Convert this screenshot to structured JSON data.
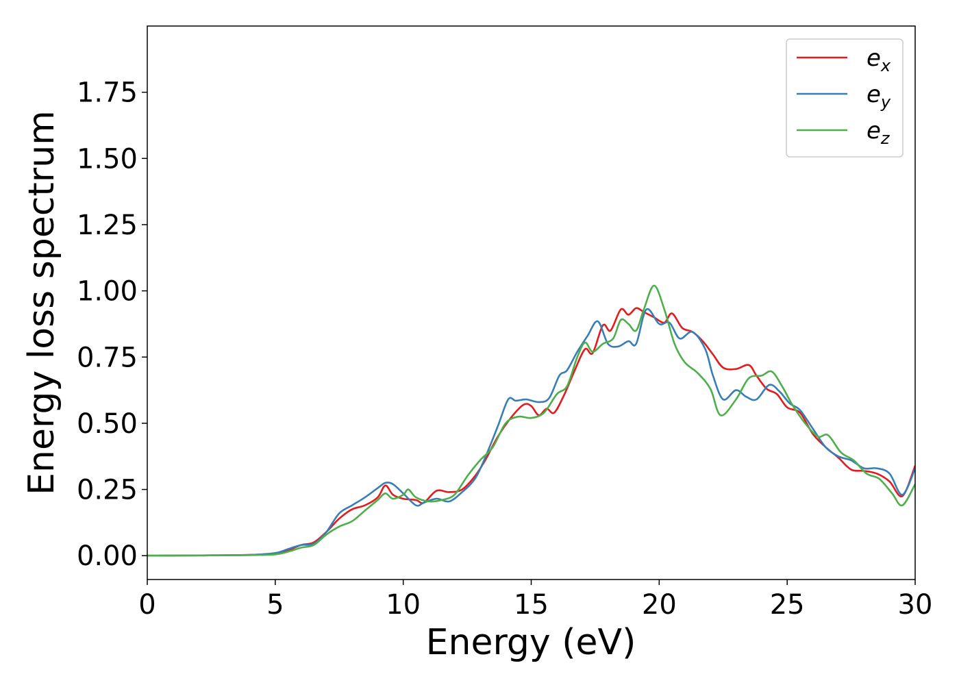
{
  "chart_data": {
    "type": "line",
    "title": "",
    "xlabel": "Energy (eV)",
    "ylabel": "Energy loss spectrum",
    "xlim": [
      0,
      30
    ],
    "ylim": [
      -0.09,
      2.0
    ],
    "xticks": [
      0,
      5,
      10,
      15,
      20,
      25,
      30
    ],
    "xtick_labels": [
      "0",
      "5",
      "10",
      "15",
      "20",
      "25",
      "30"
    ],
    "yticks": [
      0.0,
      0.25,
      0.5,
      0.75,
      1.0,
      1.25,
      1.5,
      1.75
    ],
    "ytick_labels": [
      "0.00",
      "0.25",
      "0.50",
      "0.75",
      "1.00",
      "1.25",
      "1.50",
      "1.75"
    ],
    "grid": false,
    "legend": {
      "position": "top-right",
      "entries": [
        {
          "base": "e",
          "sub": "x"
        },
        {
          "base": "e",
          "sub": "y"
        },
        {
          "base": "e",
          "sub": "z"
        }
      ]
    },
    "series": [
      {
        "color": "#e41a1c",
        "points": [
          [
            0,
            0
          ],
          [
            2,
            0.001
          ],
          [
            4,
            0.003
          ],
          [
            5,
            0.008
          ],
          [
            5.5,
            0.02
          ],
          [
            6,
            0.04
          ],
          [
            6.5,
            0.05
          ],
          [
            7,
            0.09
          ],
          [
            7.5,
            0.14
          ],
          [
            8,
            0.175
          ],
          [
            8.5,
            0.19
          ],
          [
            9,
            0.22
          ],
          [
            9.3,
            0.265
          ],
          [
            9.6,
            0.23
          ],
          [
            10,
            0.215
          ],
          [
            10.5,
            0.21
          ],
          [
            10.8,
            0.2
          ],
          [
            11.3,
            0.245
          ],
          [
            11.8,
            0.24
          ],
          [
            12.3,
            0.25
          ],
          [
            12.8,
            0.3
          ],
          [
            13.2,
            0.36
          ],
          [
            13.7,
            0.45
          ],
          [
            14.2,
            0.52
          ],
          [
            14.7,
            0.57
          ],
          [
            15,
            0.565
          ],
          [
            15.3,
            0.53
          ],
          [
            15.6,
            0.555
          ],
          [
            15.9,
            0.54
          ],
          [
            16.3,
            0.61
          ],
          [
            16.7,
            0.7
          ],
          [
            17.1,
            0.78
          ],
          [
            17.4,
            0.765
          ],
          [
            17.8,
            0.87
          ],
          [
            18.1,
            0.85
          ],
          [
            18.5,
            0.93
          ],
          [
            18.8,
            0.91
          ],
          [
            19.1,
            0.935
          ],
          [
            19.4,
            0.92
          ],
          [
            19.8,
            0.9
          ],
          [
            20.2,
            0.88
          ],
          [
            20.5,
            0.915
          ],
          [
            20.9,
            0.86
          ],
          [
            21.3,
            0.845
          ],
          [
            21.7,
            0.81
          ],
          [
            22.1,
            0.76
          ],
          [
            22.5,
            0.71
          ],
          [
            23,
            0.705
          ],
          [
            23.5,
            0.72
          ],
          [
            23.8,
            0.68
          ],
          [
            24.2,
            0.63
          ],
          [
            24.6,
            0.61
          ],
          [
            25,
            0.56
          ],
          [
            25.5,
            0.54
          ],
          [
            26,
            0.46
          ],
          [
            26.5,
            0.41
          ],
          [
            27,
            0.37
          ],
          [
            27.5,
            0.325
          ],
          [
            28,
            0.32
          ],
          [
            28.5,
            0.31
          ],
          [
            29,
            0.28
          ],
          [
            29.5,
            0.225
          ],
          [
            30,
            0.34
          ]
        ]
      },
      {
        "color": "#377eb8",
        "points": [
          [
            0,
            0
          ],
          [
            2,
            0.001
          ],
          [
            4,
            0.003
          ],
          [
            5,
            0.01
          ],
          [
            5.5,
            0.025
          ],
          [
            6,
            0.04
          ],
          [
            6.5,
            0.045
          ],
          [
            7,
            0.09
          ],
          [
            7.5,
            0.16
          ],
          [
            8,
            0.19
          ],
          [
            8.5,
            0.22
          ],
          [
            9,
            0.255
          ],
          [
            9.3,
            0.275
          ],
          [
            9.6,
            0.27
          ],
          [
            10,
            0.235
          ],
          [
            10.5,
            0.19
          ],
          [
            10.8,
            0.2
          ],
          [
            11.3,
            0.215
          ],
          [
            11.8,
            0.205
          ],
          [
            12.3,
            0.24
          ],
          [
            12.8,
            0.29
          ],
          [
            13.2,
            0.37
          ],
          [
            13.7,
            0.49
          ],
          [
            14.1,
            0.59
          ],
          [
            14.4,
            0.585
          ],
          [
            14.8,
            0.59
          ],
          [
            15.3,
            0.58
          ],
          [
            15.7,
            0.595
          ],
          [
            16.1,
            0.68
          ],
          [
            16.4,
            0.7
          ],
          [
            16.8,
            0.77
          ],
          [
            17.2,
            0.83
          ],
          [
            17.6,
            0.885
          ],
          [
            18,
            0.8
          ],
          [
            18.4,
            0.79
          ],
          [
            18.8,
            0.81
          ],
          [
            19.1,
            0.8
          ],
          [
            19.5,
            0.93
          ],
          [
            20,
            0.875
          ],
          [
            20.4,
            0.88
          ],
          [
            20.8,
            0.82
          ],
          [
            21.3,
            0.845
          ],
          [
            21.8,
            0.78
          ],
          [
            22.1,
            0.68
          ],
          [
            22.5,
            0.59
          ],
          [
            23,
            0.625
          ],
          [
            23.4,
            0.6
          ],
          [
            23.8,
            0.59
          ],
          [
            24.3,
            0.645
          ],
          [
            24.7,
            0.62
          ],
          [
            25.1,
            0.575
          ],
          [
            25.5,
            0.55
          ],
          [
            26,
            0.48
          ],
          [
            26.5,
            0.41
          ],
          [
            27,
            0.375
          ],
          [
            27.5,
            0.36
          ],
          [
            28,
            0.33
          ],
          [
            28.5,
            0.33
          ],
          [
            29,
            0.31
          ],
          [
            29.5,
            0.23
          ],
          [
            30,
            0.33
          ]
        ]
      },
      {
        "color": "#4daf4a",
        "points": [
          [
            0,
            0
          ],
          [
            2,
            0.001
          ],
          [
            4,
            0.002
          ],
          [
            5,
            0.005
          ],
          [
            5.5,
            0.015
          ],
          [
            6,
            0.03
          ],
          [
            6.5,
            0.04
          ],
          [
            7,
            0.08
          ],
          [
            7.5,
            0.11
          ],
          [
            8,
            0.13
          ],
          [
            8.5,
            0.17
          ],
          [
            9,
            0.21
          ],
          [
            9.3,
            0.235
          ],
          [
            9.6,
            0.215
          ],
          [
            10,
            0.23
          ],
          [
            10.2,
            0.25
          ],
          [
            10.5,
            0.22
          ],
          [
            11,
            0.205
          ],
          [
            11.5,
            0.21
          ],
          [
            12,
            0.23
          ],
          [
            12.5,
            0.3
          ],
          [
            13,
            0.36
          ],
          [
            13.5,
            0.41
          ],
          [
            14,
            0.5
          ],
          [
            14.5,
            0.525
          ],
          [
            15,
            0.52
          ],
          [
            15.5,
            0.54
          ],
          [
            16,
            0.61
          ],
          [
            16.4,
            0.64
          ],
          [
            16.8,
            0.75
          ],
          [
            17.1,
            0.805
          ],
          [
            17.4,
            0.77
          ],
          [
            17.8,
            0.8
          ],
          [
            18.2,
            0.82
          ],
          [
            18.5,
            0.89
          ],
          [
            18.8,
            0.875
          ],
          [
            19.1,
            0.85
          ],
          [
            19.4,
            0.93
          ],
          [
            19.8,
            1.02
          ],
          [
            20.2,
            0.93
          ],
          [
            20.6,
            0.8
          ],
          [
            21,
            0.73
          ],
          [
            21.5,
            0.69
          ],
          [
            22,
            0.63
          ],
          [
            22.4,
            0.53
          ],
          [
            23,
            0.59
          ],
          [
            23.5,
            0.67
          ],
          [
            24,
            0.68
          ],
          [
            24.4,
            0.695
          ],
          [
            24.8,
            0.64
          ],
          [
            25.2,
            0.57
          ],
          [
            25.7,
            0.5
          ],
          [
            26.2,
            0.45
          ],
          [
            26.6,
            0.455
          ],
          [
            27.1,
            0.39
          ],
          [
            27.6,
            0.36
          ],
          [
            28.1,
            0.31
          ],
          [
            28.6,
            0.29
          ],
          [
            29.1,
            0.235
          ],
          [
            29.5,
            0.19
          ],
          [
            30,
            0.27
          ]
        ]
      }
    ]
  }
}
